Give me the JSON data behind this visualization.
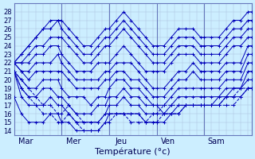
{
  "title": "Température (°c)",
  "bg_color": "#cceeff",
  "grid_color_minor": "#aabbdd",
  "grid_color_major": "#6677bb",
  "line_color": "#0000bb",
  "xlim": [
    0,
    260
  ],
  "ylim": [
    13.5,
    29
  ],
  "yticks": [
    14,
    15,
    16,
    17,
    18,
    19,
    20,
    21,
    22,
    23,
    24,
    25,
    26,
    27,
    28
  ],
  "day_positions": [
    13,
    65,
    117,
    169,
    221
  ],
  "day_labels": [
    "Mar",
    "Mer",
    "Jeu",
    "Ven",
    "Sam"
  ],
  "day_sep": [
    52,
    104,
    156,
    208,
    260
  ],
  "series": [
    {
      "x": [
        0,
        8,
        16,
        24,
        32,
        40,
        48,
        52,
        60,
        68,
        76,
        84,
        92,
        100,
        104,
        112,
        120,
        128,
        136,
        144,
        152,
        156,
        164,
        172,
        180,
        188,
        196,
        204,
        208,
        216,
        224,
        232,
        240,
        248,
        256,
        260
      ],
      "y": [
        22,
        23,
        24,
        25,
        26,
        27,
        27,
        27,
        26,
        25,
        24,
        24,
        25,
        26,
        26,
        27,
        28,
        27,
        26,
        25,
        24,
        24,
        24,
        25,
        26,
        26,
        26,
        25,
        25,
        25,
        25,
        26,
        27,
        27,
        28,
        28
      ]
    },
    {
      "x": [
        0,
        8,
        16,
        24,
        32,
        40,
        48,
        52,
        60,
        68,
        76,
        84,
        92,
        100,
        104,
        112,
        120,
        128,
        136,
        144,
        152,
        156,
        164,
        172,
        180,
        188,
        196,
        204,
        208,
        216,
        224,
        232,
        240,
        248,
        256,
        260
      ],
      "y": [
        22,
        23,
        24,
        25,
        26,
        26,
        27,
        26,
        25,
        24,
        23,
        23,
        24,
        25,
        25,
        26,
        27,
        26,
        25,
        24,
        23,
        23,
        23,
        24,
        25,
        25,
        25,
        24,
        24,
        24,
        24,
        25,
        26,
        26,
        27,
        27
      ]
    },
    {
      "x": [
        0,
        8,
        16,
        24,
        32,
        40,
        48,
        52,
        60,
        68,
        76,
        84,
        92,
        100,
        104,
        112,
        120,
        128,
        136,
        144,
        152,
        156,
        164,
        172,
        180,
        188,
        196,
        204,
        208,
        216,
        224,
        232,
        240,
        248,
        256,
        260
      ],
      "y": [
        22,
        22,
        23,
        24,
        24,
        25,
        25,
        25,
        24,
        23,
        22,
        22,
        23,
        24,
        24,
        25,
        26,
        25,
        24,
        23,
        22,
        22,
        22,
        23,
        24,
        24,
        24,
        23,
        23,
        23,
        23,
        24,
        25,
        25,
        26,
        26
      ]
    },
    {
      "x": [
        0,
        8,
        16,
        24,
        32,
        40,
        48,
        52,
        60,
        68,
        76,
        84,
        92,
        100,
        104,
        112,
        120,
        128,
        136,
        144,
        152,
        156,
        164,
        172,
        180,
        188,
        196,
        204,
        208,
        216,
        224,
        232,
        240,
        248,
        256,
        260
      ],
      "y": [
        22,
        22,
        22,
        23,
        23,
        24,
        24,
        23,
        22,
        21,
        21,
        21,
        22,
        22,
        22,
        23,
        24,
        23,
        22,
        21,
        21,
        21,
        21,
        22,
        23,
        23,
        23,
        22,
        22,
        22,
        22,
        23,
        24,
        24,
        25,
        25
      ]
    },
    {
      "x": [
        0,
        8,
        16,
        24,
        32,
        40,
        48,
        52,
        60,
        68,
        76,
        84,
        92,
        100,
        104,
        112,
        120,
        128,
        136,
        144,
        152,
        156,
        164,
        172,
        180,
        188,
        196,
        204,
        208,
        216,
        224,
        232,
        240,
        248,
        256,
        260
      ],
      "y": [
        22,
        21,
        21,
        22,
        22,
        22,
        23,
        22,
        21,
        20,
        20,
        20,
        20,
        21,
        21,
        22,
        22,
        22,
        21,
        20,
        19,
        19,
        19,
        20,
        21,
        21,
        22,
        21,
        21,
        21,
        21,
        22,
        22,
        22,
        24,
        24
      ]
    },
    {
      "x": [
        0,
        8,
        16,
        24,
        32,
        40,
        48,
        52,
        60,
        68,
        76,
        84,
        92,
        100,
        104,
        112,
        120,
        128,
        136,
        144,
        152,
        156,
        164,
        172,
        180,
        188,
        196,
        204,
        208,
        216,
        224,
        232,
        240,
        248,
        256,
        260
      ],
      "y": [
        22,
        21,
        20,
        21,
        21,
        21,
        21,
        21,
        20,
        19,
        19,
        19,
        19,
        20,
        20,
        21,
        21,
        20,
        20,
        19,
        18,
        18,
        18,
        19,
        20,
        20,
        21,
        20,
        20,
        20,
        20,
        21,
        21,
        21,
        23,
        23
      ]
    },
    {
      "x": [
        0,
        8,
        16,
        24,
        32,
        40,
        48,
        52,
        60,
        68,
        76,
        84,
        92,
        100,
        104,
        112,
        120,
        128,
        136,
        144,
        152,
        156,
        164,
        172,
        180,
        188,
        196,
        204,
        208,
        216,
        224,
        232,
        240,
        248,
        256,
        260
      ],
      "y": [
        21,
        20,
        19,
        19,
        20,
        20,
        20,
        19,
        18,
        18,
        18,
        17,
        18,
        18,
        19,
        20,
        20,
        19,
        19,
        18,
        17,
        17,
        17,
        18,
        19,
        19,
        19,
        19,
        19,
        19,
        19,
        20,
        20,
        20,
        22,
        22
      ]
    },
    {
      "x": [
        0,
        8,
        16,
        24,
        32,
        40,
        48,
        52,
        60,
        68,
        76,
        84,
        92,
        100,
        104,
        112,
        120,
        128,
        136,
        144,
        152,
        156,
        164,
        172,
        180,
        188,
        196,
        204,
        208,
        216,
        224,
        232,
        240,
        248,
        256,
        260
      ],
      "y": [
        21,
        19,
        18,
        18,
        19,
        19,
        18,
        18,
        17,
        16,
        16,
        16,
        17,
        17,
        18,
        18,
        19,
        18,
        18,
        17,
        17,
        17,
        16,
        17,
        18,
        18,
        18,
        18,
        18,
        18,
        18,
        19,
        19,
        19,
        21,
        21
      ]
    },
    {
      "x": [
        0,
        8,
        16,
        24,
        32,
        40,
        48,
        52,
        60,
        68,
        76,
        84,
        92,
        100,
        104,
        112,
        120,
        128,
        136,
        144,
        152,
        156,
        164,
        172,
        180,
        188,
        196,
        204,
        208,
        216,
        224,
        232,
        240,
        248,
        256,
        260
      ],
      "y": [
        21,
        18,
        17,
        17,
        17,
        18,
        17,
        17,
        16,
        15,
        15,
        15,
        15,
        16,
        17,
        17,
        18,
        17,
        17,
        16,
        16,
        16,
        16,
        16,
        17,
        17,
        17,
        17,
        17,
        17,
        18,
        18,
        19,
        19,
        20,
        20
      ]
    },
    {
      "x": [
        0,
        8,
        16,
        24,
        32,
        40,
        48,
        52,
        60,
        68,
        76,
        84,
        92,
        100,
        104,
        112,
        120,
        128,
        136,
        144,
        152,
        156,
        164,
        172,
        180,
        188,
        196,
        204,
        208,
        216,
        224,
        232,
        240,
        248,
        256,
        260
      ],
      "y": [
        18,
        16,
        15,
        15,
        15,
        16,
        16,
        15,
        15,
        14,
        14,
        14,
        14,
        15,
        16,
        16,
        16,
        16,
        16,
        15,
        15,
        15,
        15,
        16,
        16,
        17,
        17,
        17,
        17,
        17,
        17,
        18,
        18,
        18,
        19,
        19
      ]
    },
    {
      "x": [
        0,
        8,
        16,
        24,
        32,
        40,
        48,
        52,
        60,
        68,
        76,
        84,
        92,
        100,
        104,
        112,
        120,
        128,
        136,
        144,
        152,
        156,
        164,
        172,
        180,
        188,
        196,
        204,
        208,
        216,
        224,
        232,
        240,
        248,
        256,
        260
      ],
      "y": [
        21,
        20,
        19,
        18,
        17,
        17,
        16,
        16,
        17,
        16,
        15,
        15,
        15,
        16,
        16,
        16,
        16,
        16,
        16,
        15,
        16,
        16,
        17,
        17,
        17,
        17,
        17,
        17,
        17,
        17,
        17,
        18,
        18,
        19,
        19,
        19
      ],
      "dashed": true
    },
    {
      "x": [
        0,
        8,
        16,
        24,
        32,
        40,
        48,
        52,
        60,
        68,
        76,
        84,
        92,
        100,
        104,
        112,
        120,
        128,
        136,
        144,
        152,
        156,
        164,
        172,
        180,
        188,
        196,
        204,
        208,
        216,
        224,
        232,
        240,
        248,
        256,
        260
      ],
      "y": [
        21,
        19,
        18,
        17,
        16,
        16,
        15,
        15,
        16,
        15,
        14,
        14,
        14,
        15,
        15,
        16,
        16,
        15,
        15,
        15,
        15,
        15,
        16,
        16,
        16,
        17,
        17,
        17,
        17,
        17,
        17,
        17,
        17,
        18,
        19,
        19
      ],
      "dashed": true
    }
  ]
}
